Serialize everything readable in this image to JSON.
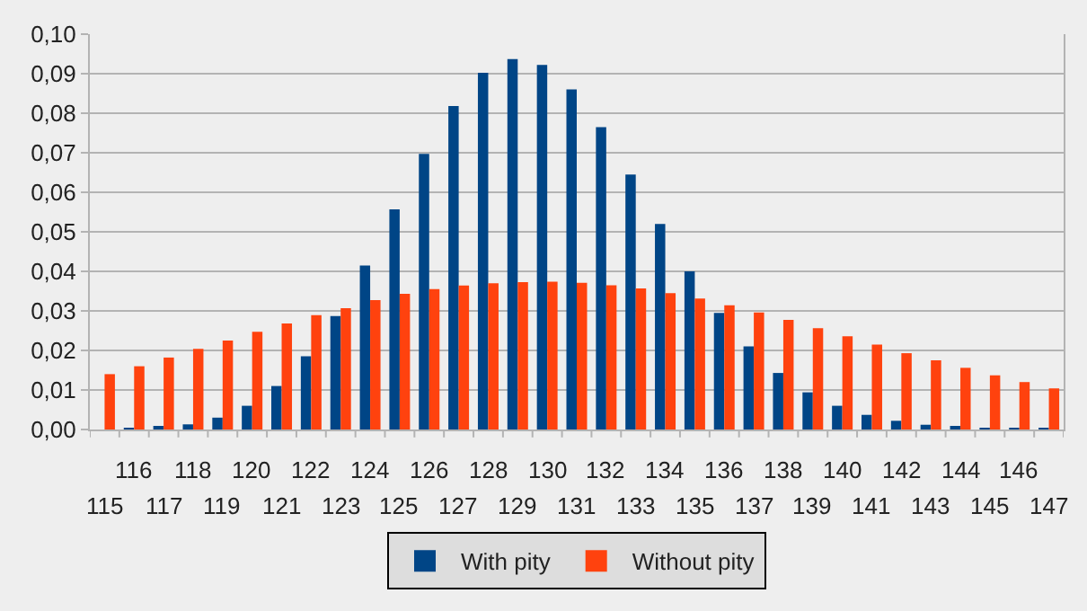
{
  "chart_data": {
    "type": "bar",
    "categories": [
      "115",
      "116",
      "117",
      "118",
      "119",
      "120",
      "121",
      "122",
      "123",
      "124",
      "125",
      "126",
      "127",
      "128",
      "129",
      "130",
      "131",
      "132",
      "133",
      "134",
      "135",
      "136",
      "137",
      "138",
      "139",
      "140",
      "141",
      "142",
      "143",
      "144",
      "145",
      "146",
      "147"
    ],
    "series": [
      {
        "name": "With pity",
        "color": "#004586",
        "values": [
          0,
          0.0003,
          0.0005,
          0.0013,
          0.003,
          0.006,
          0.011,
          0.0185,
          0.0287,
          0.0415,
          0.0557,
          0.0697,
          0.0818,
          0.0902,
          0.0937,
          0.0922,
          0.086,
          0.0765,
          0.0645,
          0.052,
          0.04,
          0.0295,
          0.021,
          0.0143,
          0.0094,
          0.006,
          0.0037,
          0.0022,
          0.0012,
          0.0006,
          0.0003,
          0.0002,
          0.0001
        ]
      },
      {
        "name": "Without pity",
        "color": "#ff420e",
        "values": [
          0.014,
          0.016,
          0.0182,
          0.0204,
          0.0225,
          0.0247,
          0.0268,
          0.0289,
          0.0307,
          0.0327,
          0.0343,
          0.0355,
          0.0364,
          0.037,
          0.0373,
          0.0374,
          0.0371,
          0.0365,
          0.0357,
          0.0345,
          0.0331,
          0.0314,
          0.0296,
          0.0277,
          0.0256,
          0.0236,
          0.0215,
          0.0193,
          0.0175,
          0.0156,
          0.0137,
          0.012,
          0.0104
        ]
      }
    ],
    "ylim": [
      0,
      0.1
    ],
    "yticks": [
      {
        "value": 0,
        "label": "0,00"
      },
      {
        "value": 0.01,
        "label": "0,01"
      },
      {
        "value": 0.02,
        "label": "0,02"
      },
      {
        "value": 0.03,
        "label": "0,03"
      },
      {
        "value": 0.04,
        "label": "0,04"
      },
      {
        "value": 0.05,
        "label": "0,05"
      },
      {
        "value": 0.06,
        "label": "0,06"
      },
      {
        "value": 0.07,
        "label": "0,07"
      },
      {
        "value": 0.08,
        "label": "0,08"
      },
      {
        "value": 0.09,
        "label": "0,09"
      },
      {
        "value": 0.1,
        "label": "0,10"
      }
    ],
    "grid": "y",
    "legend": "bottom"
  }
}
